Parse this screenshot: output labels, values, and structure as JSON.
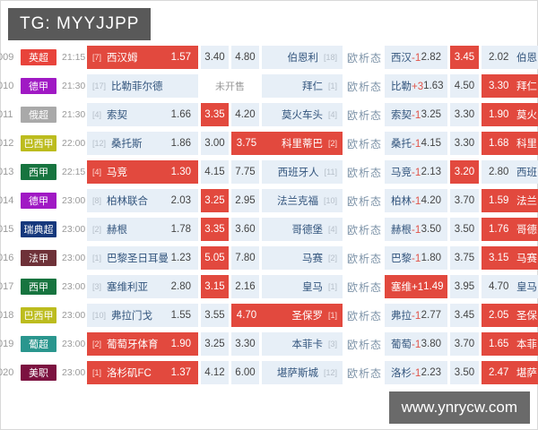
{
  "header": {
    "tg_label": "TG: MYYJJPP"
  },
  "footer": {
    "site": "www.ynrycw.com"
  },
  "labels": {
    "links": [
      "欧",
      "析",
      "态"
    ],
    "not_open": "未开售"
  },
  "accent_red": "#e2493e",
  "rows": [
    {
      "num": "009",
      "league": "英超",
      "league_color": "#e8433b",
      "time": "21:15",
      "home_rank": "[7]",
      "home": "西汉姆",
      "home_odds": "1.57",
      "draw_odds": "3.40",
      "away_odds": "4.80",
      "away": "伯恩利",
      "away_rank": "[18]",
      "h_team": "西汉",
      "h_line": "-1",
      "h_home": "2.82",
      "h_draw": "3.45",
      "h_away": "2.02",
      "h_away_team": "伯恩",
      "red": [
        "home",
        "h_draw"
      ]
    },
    {
      "num": "010",
      "league": "德甲",
      "league_color": "#a019c4",
      "time": "21:30",
      "home_rank": "[17]",
      "home": "比勒菲尔德",
      "home_odds": "",
      "not_open": true,
      "away": "拜仁",
      "away_rank": "[1]",
      "h_team": "比勒",
      "h_line": "+3",
      "h_home": "1.63",
      "h_draw": "4.50",
      "h_away": "3.30",
      "h_away_team": "拜仁",
      "red": [
        "h_away"
      ]
    },
    {
      "num": "011",
      "league": "俄超",
      "league_color": "#a9a9a9",
      "time": "21:30",
      "home_rank": "[4]",
      "home": "索契",
      "home_odds": "1.66",
      "draw_odds": "3.35",
      "away_odds": "4.20",
      "away": "莫火车头",
      "away_rank": "[4]",
      "h_team": "索契",
      "h_line": "-1",
      "h_home": "3.25",
      "h_draw": "3.30",
      "h_away": "1.90",
      "h_away_team": "莫火",
      "red": [
        "draw",
        "h_away"
      ]
    },
    {
      "num": "012",
      "league": "巴西甲",
      "league_color": "#bcbc1e",
      "time": "22:00",
      "home_rank": "[12]",
      "home": "桑托斯",
      "home_odds": "1.86",
      "draw_odds": "3.00",
      "away_odds": "3.75",
      "away": "科里蒂巴",
      "away_rank": "[2]",
      "h_team": "桑托",
      "h_line": "-1",
      "h_home": "4.15",
      "h_draw": "3.30",
      "h_away": "1.68",
      "h_away_team": "科里",
      "red": [
        "aodds",
        "away",
        "h_away"
      ]
    },
    {
      "num": "013",
      "league": "西甲",
      "league_color": "#17743f",
      "time": "22:15",
      "home_rank": "[4]",
      "home": "马竞",
      "home_odds": "1.30",
      "draw_odds": "4.15",
      "away_odds": "7.75",
      "away": "西班牙人",
      "away_rank": "[11]",
      "h_team": "马竞",
      "h_line": "-1",
      "h_home": "2.13",
      "h_draw": "3.20",
      "h_away": "2.80",
      "h_away_team": "西班",
      "red": [
        "home",
        "h_draw"
      ]
    },
    {
      "num": "014",
      "league": "德甲",
      "league_color": "#a019c4",
      "time": "23:00",
      "home_rank": "[8]",
      "home": "柏林联合",
      "home_odds": "2.03",
      "draw_odds": "3.25",
      "away_odds": "2.95",
      "away": "法兰克福",
      "away_rank": "[10]",
      "h_team": "柏林",
      "h_line": "-1",
      "h_home": "4.20",
      "h_draw": "3.70",
      "h_away": "1.59",
      "h_away_team": "法兰",
      "red": [
        "draw",
        "h_away"
      ]
    },
    {
      "num": "015",
      "league": "瑞典超",
      "league_color": "#16387c",
      "time": "23:00",
      "home_rank": "[2]",
      "home": "赫根",
      "home_odds": "1.78",
      "draw_odds": "3.35",
      "away_odds": "3.60",
      "away": "哥德堡",
      "away_rank": "[4]",
      "h_team": "赫根",
      "h_line": "-1",
      "h_home": "3.50",
      "h_draw": "3.50",
      "h_away": "1.76",
      "h_away_team": "哥德",
      "red": [
        "draw",
        "h_away"
      ]
    },
    {
      "num": "016",
      "league": "法甲",
      "league_color": "#6e3138",
      "time": "23:00",
      "home_rank": "[1]",
      "home": "巴黎圣日耳曼",
      "home_odds": "1.23",
      "draw_odds": "5.05",
      "away_odds": "7.80",
      "away": "马赛",
      "away_rank": "[2]",
      "h_team": "巴黎",
      "h_line": "-1",
      "h_home": "1.80",
      "h_draw": "3.75",
      "h_away": "3.15",
      "h_away_team": "马赛",
      "red": [
        "draw",
        "h_away"
      ]
    },
    {
      "num": "017",
      "league": "西甲",
      "league_color": "#17743f",
      "time": "23:00",
      "home_rank": "[3]",
      "home": "塞维利亚",
      "home_odds": "2.80",
      "draw_odds": "3.15",
      "away_odds": "2.16",
      "away": "皇马",
      "away_rank": "[1]",
      "h_team": "塞维",
      "h_line": "+1",
      "h_home": "1.49",
      "h_draw": "3.95",
      "h_away": "4.70",
      "h_away_team": "皇马",
      "red": [
        "draw",
        "h_home"
      ]
    },
    {
      "num": "018",
      "league": "巴西甲",
      "league_color": "#bcbc1e",
      "time": "23:00",
      "home_rank": "[10]",
      "home": "弗拉门戈",
      "home_odds": "1.55",
      "draw_odds": "3.55",
      "away_odds": "4.70",
      "away": "圣保罗",
      "away_rank": "[1]",
      "h_team": "弗拉",
      "h_line": "-1",
      "h_home": "2.77",
      "h_draw": "3.45",
      "h_away": "2.05",
      "h_away_team": "圣保",
      "red": [
        "aodds",
        "away",
        "h_away"
      ]
    },
    {
      "num": "019",
      "league": "葡超",
      "league_color": "#2a968e",
      "time": "23:00",
      "home_rank": "[2]",
      "home": "葡萄牙体育",
      "home_odds": "1.90",
      "draw_odds": "3.25",
      "away_odds": "3.30",
      "away": "本菲卡",
      "away_rank": "[3]",
      "h_team": "葡萄",
      "h_line": "-1",
      "h_home": "3.80",
      "h_draw": "3.70",
      "h_away": "1.65",
      "h_away_team": "本菲",
      "red": [
        "home",
        "h_away"
      ]
    },
    {
      "num": "020",
      "league": "美职",
      "league_color": "#7c1240",
      "time": "23:00",
      "home_rank": "[1]",
      "home": "洛杉矶FC",
      "home_odds": "1.37",
      "draw_odds": "4.12",
      "away_odds": "6.00",
      "away": "堪萨斯城",
      "away_rank": "[12]",
      "h_team": "洛杉",
      "h_line": "-1",
      "h_home": "2.23",
      "h_draw": "3.50",
      "h_away": "2.47",
      "h_away_team": "堪萨",
      "red": [
        "home",
        "h_away"
      ]
    }
  ]
}
